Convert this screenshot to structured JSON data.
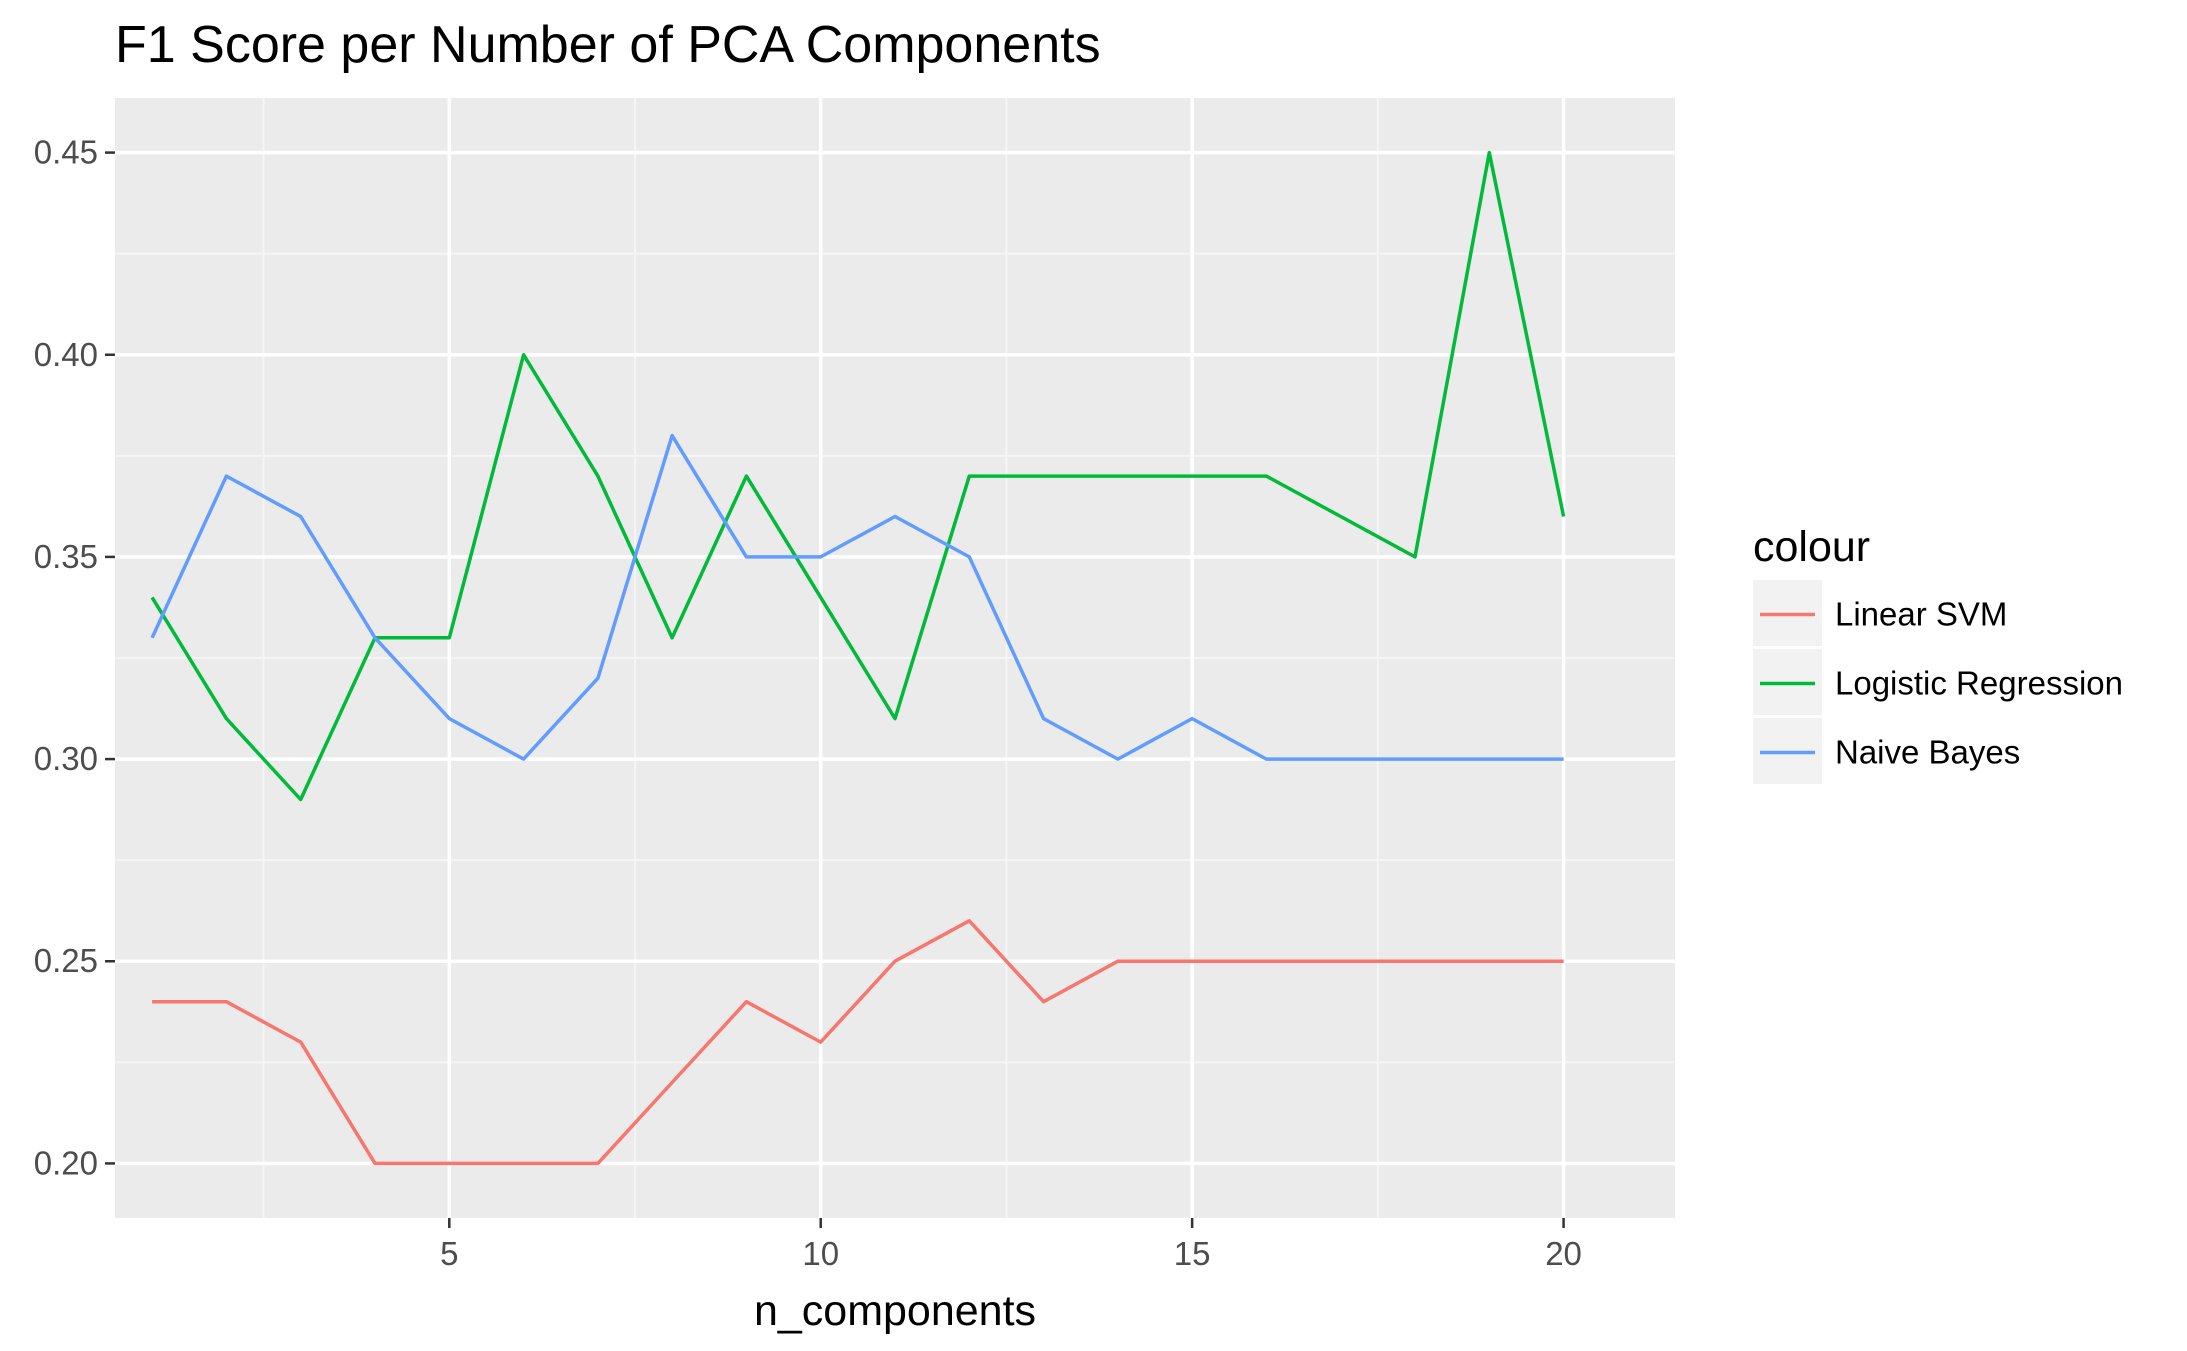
{
  "chart_data": {
    "type": "line",
    "title": "F1 Score per Number of PCA Components",
    "xlabel": "n_components",
    "ylabel": "",
    "xlim": [
      0.5,
      21.5
    ],
    "ylim": [
      0.1865,
      0.4635
    ],
    "x_ticks": [
      5,
      10,
      15,
      20
    ],
    "y_ticks": [
      0.2,
      0.25,
      0.3,
      0.35,
      0.4,
      0.45
    ],
    "x_tick_labels": [
      "5",
      "10",
      "15",
      "20"
    ],
    "y_tick_labels": [
      "0.20",
      "0.25",
      "0.30",
      "0.35",
      "0.40",
      "0.45"
    ],
    "grid": true,
    "legend": {
      "title": "colour",
      "position": "right"
    },
    "x": [
      1,
      2,
      3,
      4,
      5,
      6,
      7,
      8,
      9,
      10,
      11,
      12,
      13,
      14,
      15,
      16,
      17,
      18,
      19,
      20
    ],
    "series": [
      {
        "name": "Linear SVM",
        "color": "#F8766D",
        "values": [
          0.24,
          0.24,
          0.23,
          0.2,
          0.2,
          0.2,
          0.2,
          0.22,
          0.24,
          0.23,
          0.25,
          0.26,
          0.24,
          0.25,
          0.25,
          0.25,
          0.25,
          0.25,
          0.25,
          0.25
        ]
      },
      {
        "name": "Logistic Regression",
        "color": "#00BA38",
        "values": [
          0.34,
          0.31,
          0.29,
          0.33,
          0.33,
          0.4,
          0.37,
          0.33,
          0.37,
          0.34,
          0.31,
          0.37,
          0.37,
          0.37,
          0.37,
          0.37,
          0.36,
          0.35,
          0.45,
          0.36
        ]
      },
      {
        "name": "Naive Bayes",
        "color": "#619CFF",
        "values": [
          0.33,
          0.37,
          0.36,
          0.33,
          0.31,
          0.3,
          0.32,
          0.38,
          0.35,
          0.35,
          0.36,
          0.35,
          0.31,
          0.3,
          0.31,
          0.3,
          0.3,
          0.3,
          0.3,
          0.3
        ]
      }
    ],
    "colors": {
      "panel_background": "#EBEBEB",
      "grid_major": "#FFFFFF",
      "grid_minor": "#F5F5F5"
    }
  }
}
